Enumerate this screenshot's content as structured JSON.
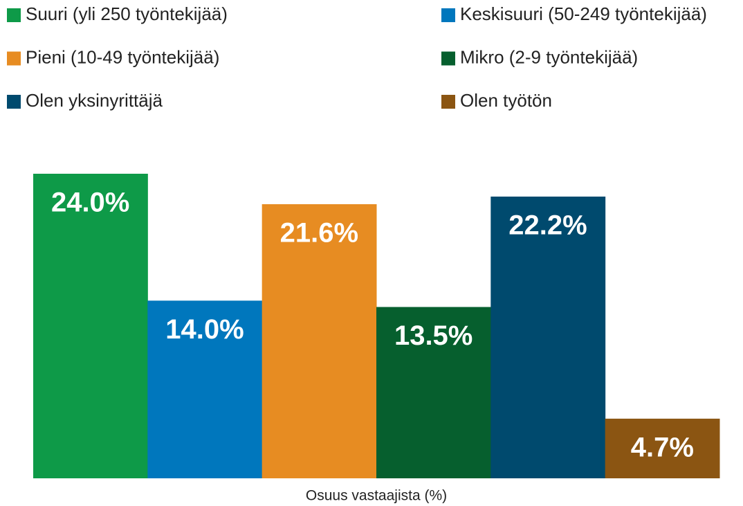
{
  "chart_data": {
    "type": "bar",
    "categories": [
      "Osuus vastaajista (%)"
    ],
    "series": [
      {
        "name": "Suuri (yli 250 työntekijää)",
        "color": "#0e9a48",
        "values": [
          24.0
        ],
        "value_labels": [
          "24.0%"
        ]
      },
      {
        "name": "Keskisuuri (50-249 työntekijää)",
        "color": "#0077bd",
        "values": [
          14.0
        ],
        "value_labels": [
          "14.0%"
        ]
      },
      {
        "name": "Pieni (10-49 työntekijää)",
        "color": "#e78c22",
        "values": [
          21.6
        ],
        "value_labels": [
          "21.6%"
        ]
      },
      {
        "name": "Mikro (2-9 työntekijää)",
        "color": "#065f2e",
        "values": [
          13.5
        ],
        "value_labels": [
          "13.5%"
        ]
      },
      {
        "name": "Olen yksinyrittäjä",
        "color": "#004a6e",
        "values": [
          22.2
        ],
        "value_labels": [
          "22.2%"
        ]
      },
      {
        "name": "Olen työtön",
        "color": "#8b5512",
        "values": [
          4.7
        ],
        "value_labels": [
          "4.7%"
        ]
      }
    ],
    "ylim": [
      0,
      24
    ],
    "legend": "top"
  }
}
